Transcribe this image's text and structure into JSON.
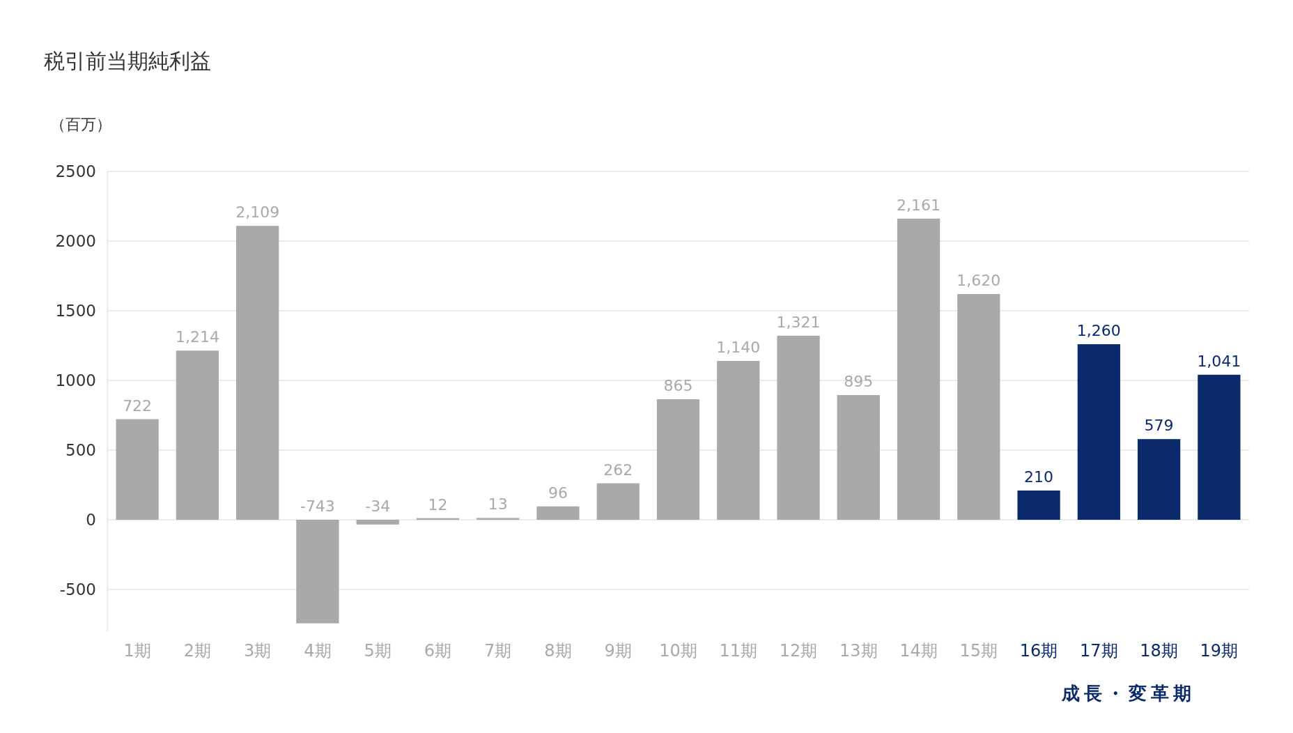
{
  "chart_data": {
    "type": "bar",
    "title": "税引前当期純利益",
    "ylabel": "（百万）",
    "categories": [
      "1期",
      "2期",
      "3期",
      "4期",
      "5期",
      "6期",
      "7期",
      "8期",
      "9期",
      "10期",
      "11期",
      "12期",
      "13期",
      "14期",
      "15期",
      "16期",
      "17期",
      "18期",
      "19期"
    ],
    "values": [
      722,
      1214,
      2109,
      -743,
      -34,
      12,
      13,
      96,
      262,
      865,
      1140,
      1321,
      895,
      2161,
      1620,
      210,
      1260,
      579,
      1041
    ],
    "colors": [
      "#a9a9a9",
      "#a9a9a9",
      "#a9a9a9",
      "#a9a9a9",
      "#a9a9a9",
      "#a9a9a9",
      "#a9a9a9",
      "#a9a9a9",
      "#a9a9a9",
      "#a9a9a9",
      "#a9a9a9",
      "#a9a9a9",
      "#a9a9a9",
      "#a9a9a9",
      "#a9a9a9",
      "#0a2a6b",
      "#0a2a6b",
      "#0a2a6b",
      "#0a2a6b"
    ],
    "value_labels": [
      "722",
      "1,214",
      "2,109",
      "-743",
      "-34",
      "12",
      "13",
      "96",
      "262",
      "865",
      "1,140",
      "1,321",
      "895",
      "2,161",
      "1,620",
      "210",
      "1,260",
      "579",
      "1,041"
    ],
    "ylim": [
      -800,
      2500
    ],
    "yticks": [
      -500,
      0,
      500,
      1000,
      1500,
      2000,
      2500
    ],
    "grid": "y",
    "annotations": [
      "成長・変革期"
    ]
  }
}
